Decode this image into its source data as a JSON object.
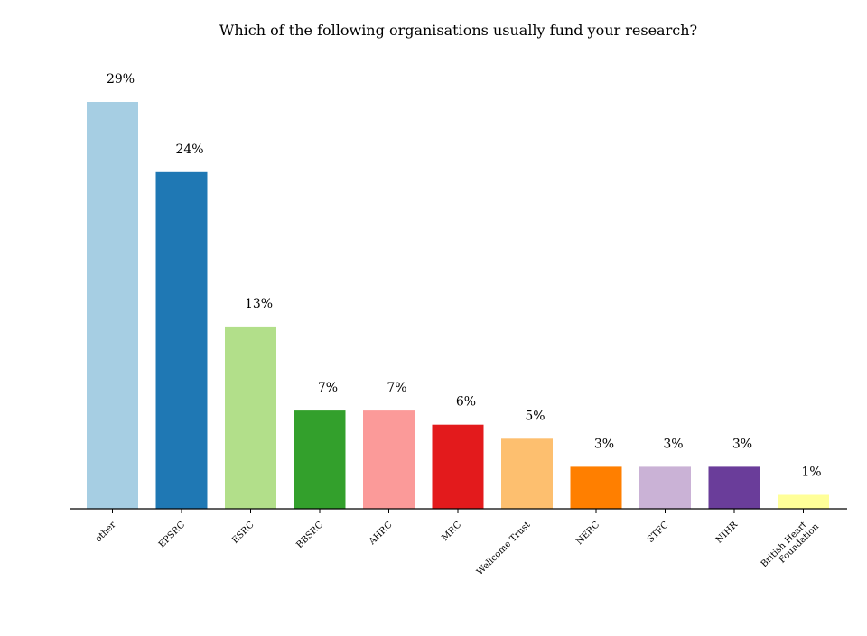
{
  "chart_data": {
    "type": "bar",
    "title": "Which of the following organisations usually fund your research?",
    "xlabel": "",
    "ylabel": "",
    "categories": [
      "other",
      "EPSRC",
      "ESRC",
      "BBSRC",
      "AHRC",
      "MRC",
      "Wellcome Trust",
      "NERC",
      "STFC",
      "NIHR",
      "British Heart\nFoundation"
    ],
    "values": [
      29,
      24,
      13,
      7,
      7,
      6,
      5,
      3,
      3,
      3,
      1
    ],
    "value_labels": [
      "29%",
      "24%",
      "13%",
      "7%",
      "7%",
      "6%",
      "5%",
      "3%",
      "3%",
      "3%",
      "1%"
    ],
    "colors": [
      "#a6cee3",
      "#1f78b4",
      "#b2df8a",
      "#33a02c",
      "#fb9a99",
      "#e31a1c",
      "#fdbf6f",
      "#ff7f00",
      "#cab2d6",
      "#6a3d9a",
      "#ffff99"
    ],
    "ylim": [
      0,
      32
    ],
    "grid": false,
    "legend": "none",
    "tick_label_rotation": 45
  }
}
